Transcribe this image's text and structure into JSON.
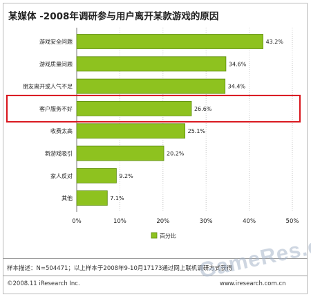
{
  "chart_data": {
    "type": "bar",
    "orientation": "horizontal",
    "title": "某媒体 -2008年调研参与用户离开某款游戏的原因",
    "categories": [
      "游戏安全问题",
      "游戏质量问题",
      "朋友离开或人气不足",
      "客户服务不好",
      "收费太高",
      "新游戏吸引",
      "家人反对",
      "其他"
    ],
    "series": [
      {
        "name": "百分比",
        "values": [
          43.2,
          34.6,
          34.4,
          26.6,
          25.1,
          20.2,
          9.2,
          7.1
        ]
      }
    ],
    "value_labels": [
      "43.2%",
      "34.6%",
      "34.4%",
      "26.6%",
      "25.1%",
      "20.2%",
      "9.2%",
      "7.1%"
    ],
    "xlim": [
      0,
      50
    ],
    "xticks": [
      0,
      10,
      20,
      30,
      40,
      50
    ],
    "xtick_labels": [
      "0%",
      "10%",
      "20%",
      "30%",
      "40%",
      "50%"
    ],
    "highlighted_category": "客户服务不好",
    "grid": "vertical-dotted",
    "legend_position": "bottom-center",
    "bar_color": "#8ec21f",
    "bar_border_color": "#5c8a0e",
    "highlight_color": "#d9141b"
  },
  "footer": {
    "note": "样本描述：N=504471；以上样本于2008年9-10月17173通过网上联机调研方式获得",
    "copyright": "©2008.11 iResearch Inc.",
    "website": "www.iresearch.com.cn"
  },
  "watermark": "GameRes.com"
}
